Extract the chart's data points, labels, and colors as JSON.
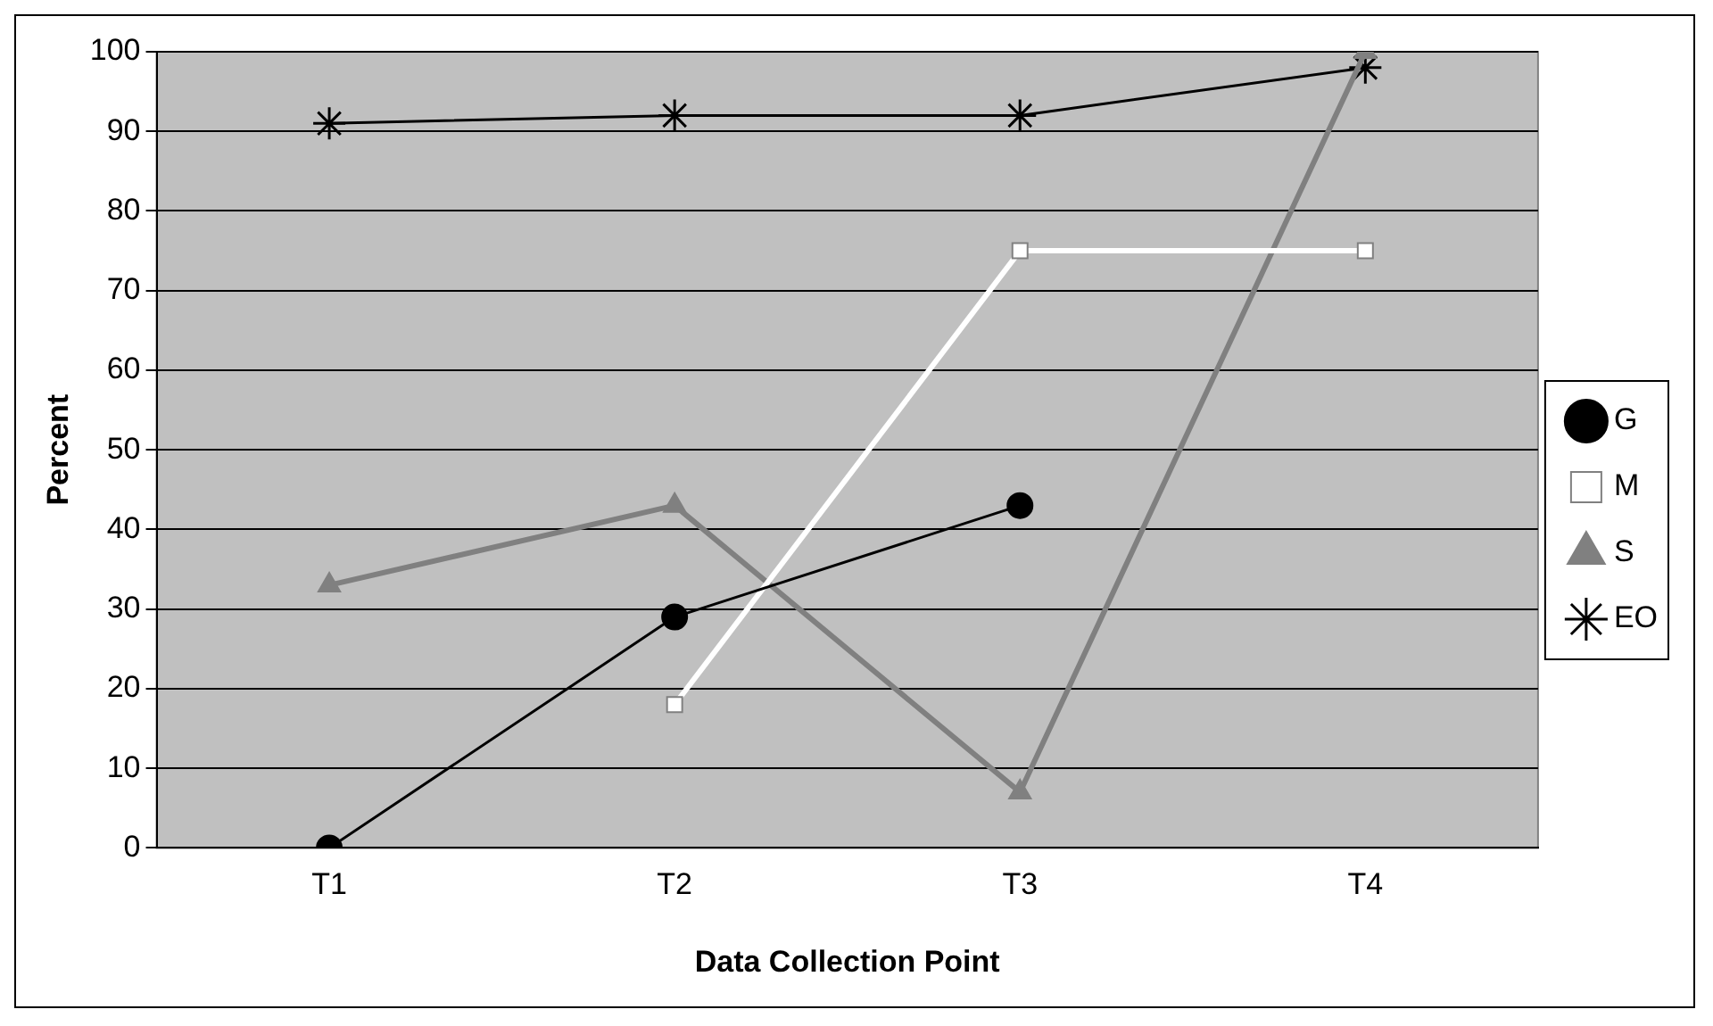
{
  "chart_data": {
    "type": "line",
    "xlabel": "Data Collection Point",
    "ylabel": "Percent",
    "categories": [
      "T1",
      "T2",
      "T3",
      "T4"
    ],
    "series": [
      {
        "name": "G",
        "color": "#000000",
        "values": [
          0,
          29,
          43,
          null
        ],
        "marker": "circle"
      },
      {
        "name": "M",
        "color": "#ffffff",
        "values": [
          null,
          18,
          75,
          75
        ],
        "marker": "square"
      },
      {
        "name": "S",
        "color": "#808080",
        "values": [
          33,
          43,
          7,
          100
        ],
        "marker": "triangle"
      },
      {
        "name": "EO",
        "color": "#000000",
        "values": [
          91,
          92,
          92,
          98
        ],
        "marker": "cross"
      }
    ],
    "ylim": [
      0,
      100
    ],
    "yticks": [
      0,
      10,
      20,
      30,
      40,
      50,
      60,
      70,
      80,
      90,
      100
    ],
    "grid": "y",
    "legend": "right"
  }
}
